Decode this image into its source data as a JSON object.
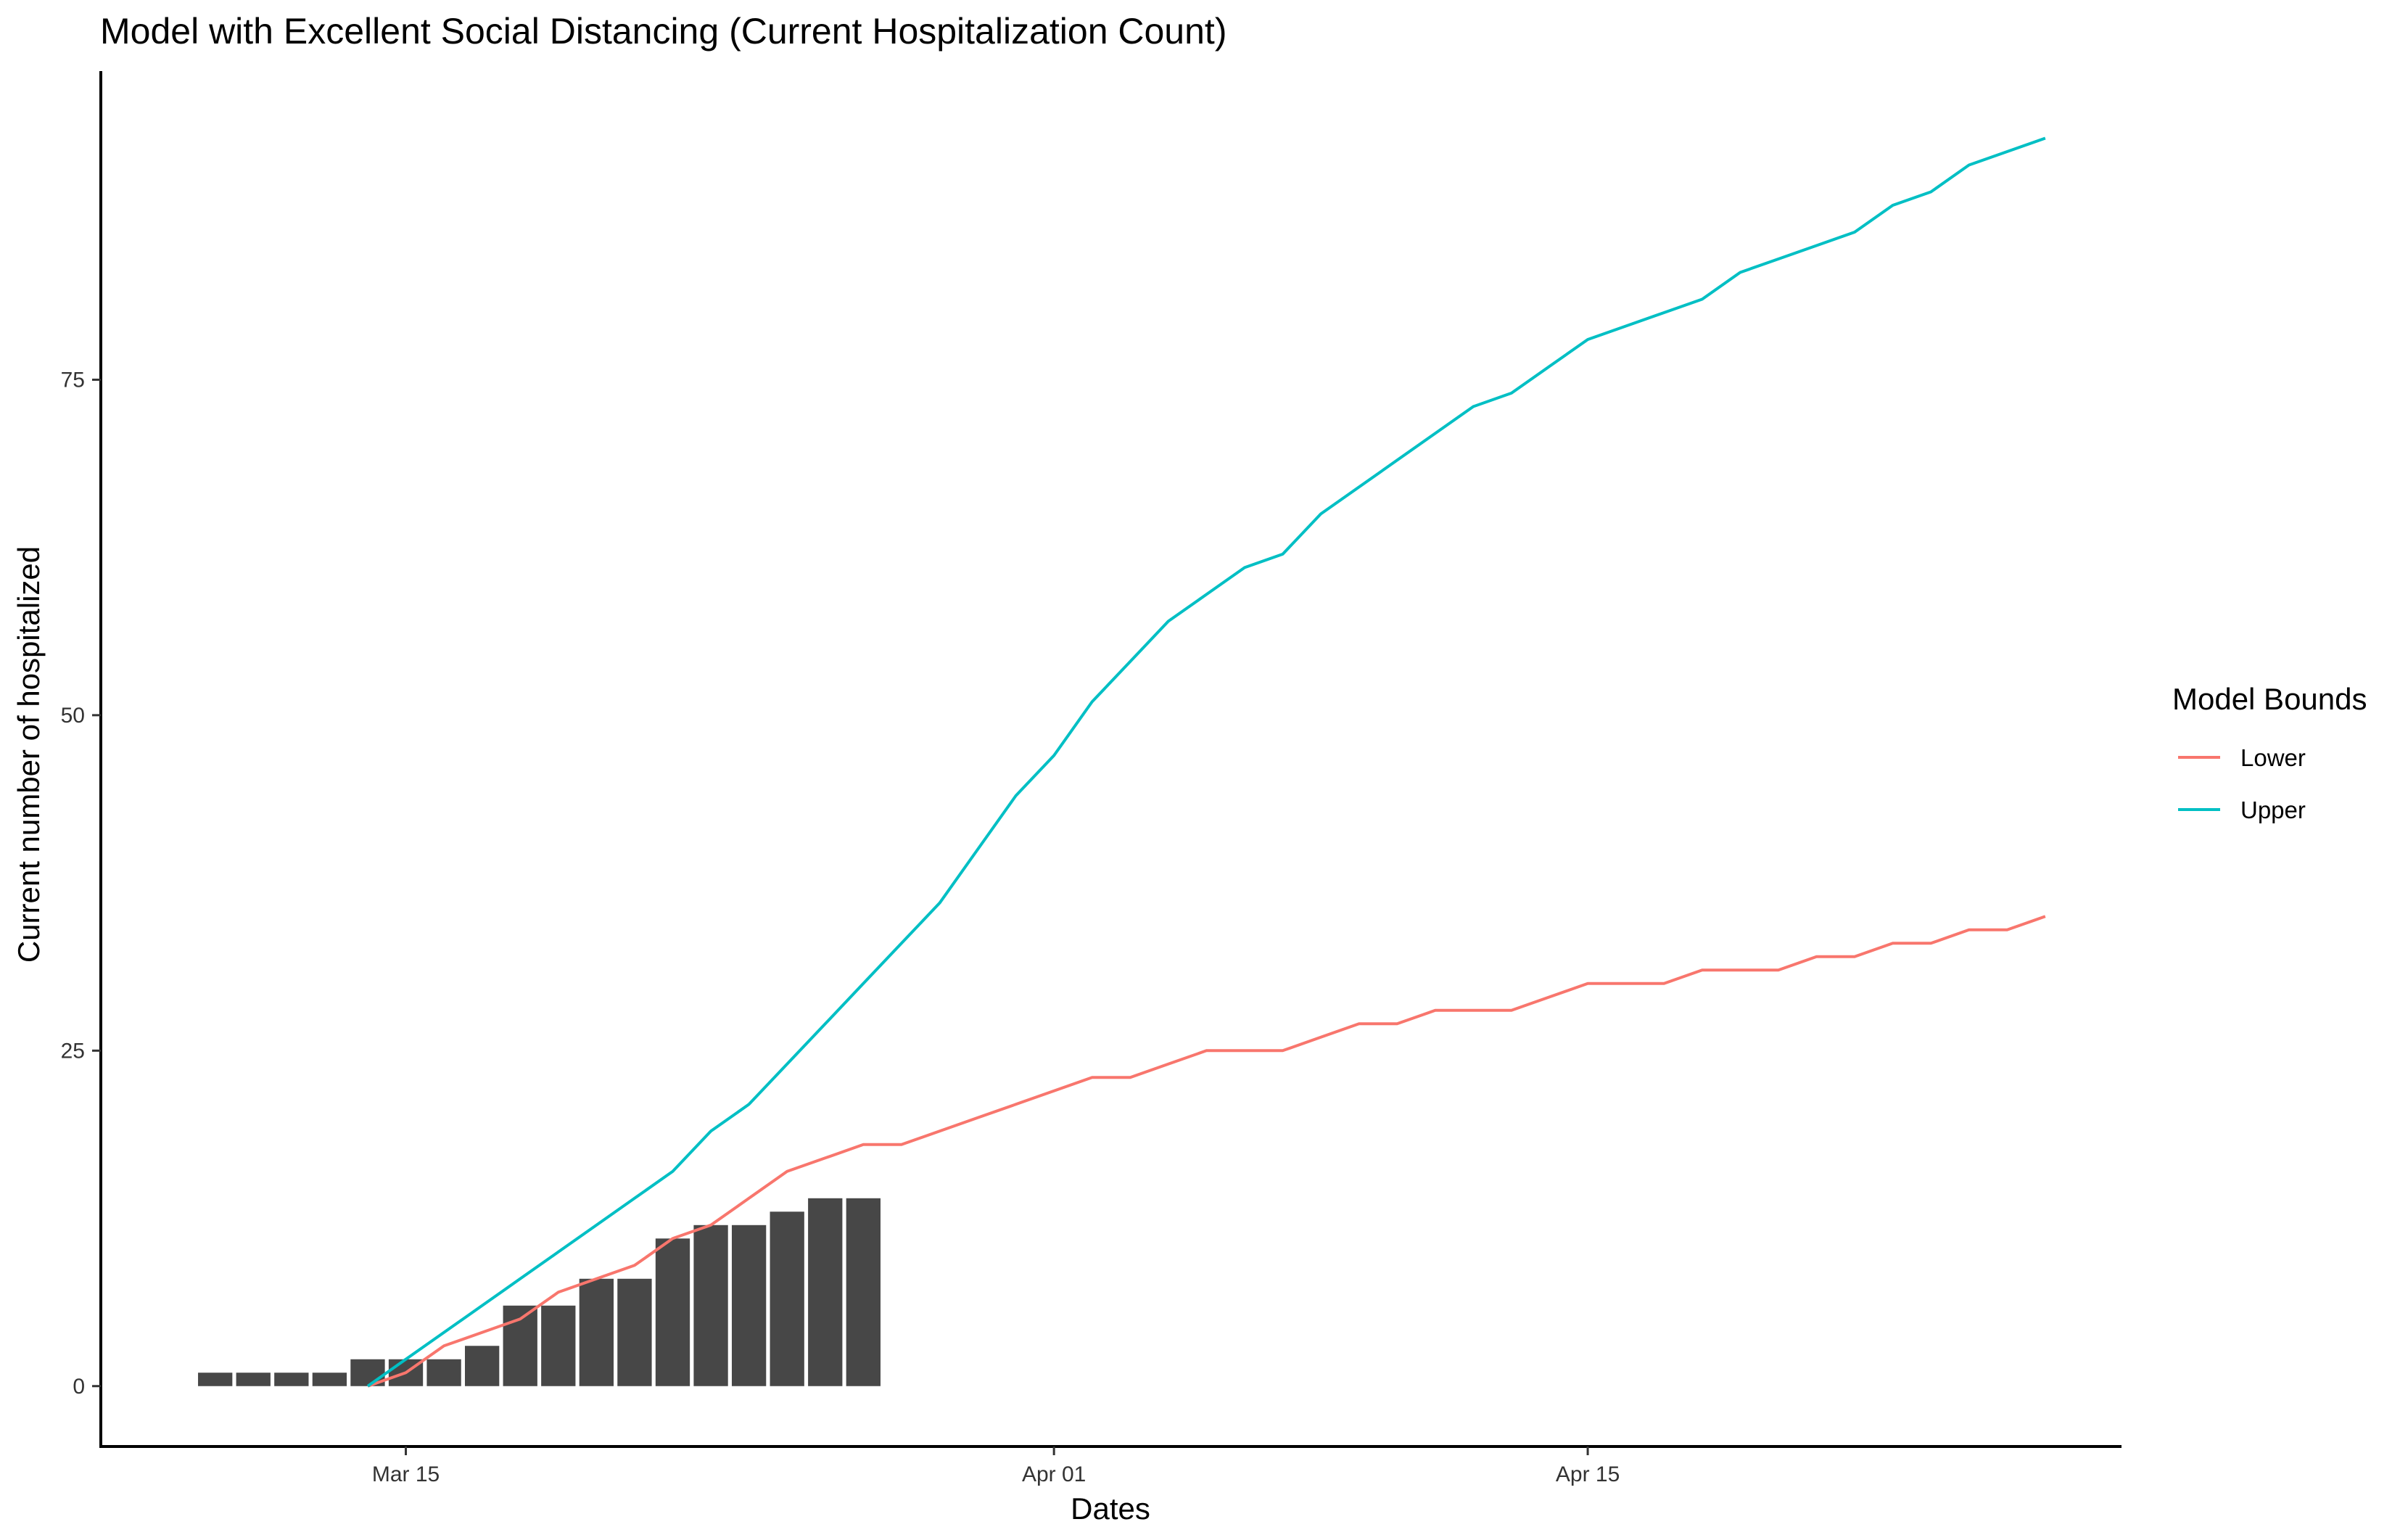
{
  "chart_data": {
    "type": "line",
    "title": "Model with Excellent Social Distancing (Current Hospitalization Count)",
    "xlabel": "Dates",
    "ylabel": "Current number of hospitalized",
    "xlim": [
      "2020-03-07",
      "2020-04-29"
    ],
    "ylim": [
      -4.5,
      98
    ],
    "x_ticks": [
      {
        "date": "2020-03-15",
        "label": "Mar 15"
      },
      {
        "date": "2020-04-01",
        "label": "Apr 01"
      },
      {
        "date": "2020-04-15",
        "label": "Apr 15"
      }
    ],
    "y_ticks": [
      0,
      25,
      50,
      75
    ],
    "grid": false,
    "legend": {
      "title": "Model Bounds",
      "position": "right",
      "entries": [
        {
          "label": "Lower",
          "color": "#F8766D"
        },
        {
          "label": "Upper",
          "color": "#00BFC4"
        }
      ]
    },
    "bars": {
      "color": "#474747",
      "dates": [
        "2020-03-10",
        "2020-03-11",
        "2020-03-12",
        "2020-03-13",
        "2020-03-14",
        "2020-03-15",
        "2020-03-16",
        "2020-03-17",
        "2020-03-18",
        "2020-03-19",
        "2020-03-20",
        "2020-03-21",
        "2020-03-22",
        "2020-03-23",
        "2020-03-24",
        "2020-03-25",
        "2020-03-26",
        "2020-03-27"
      ],
      "values": [
        1,
        1,
        1,
        1,
        2,
        2,
        2,
        3,
        6,
        6,
        8,
        8,
        11,
        12,
        12,
        13,
        14,
        14
      ]
    },
    "series": [
      {
        "name": "Lower",
        "color": "#F8766D",
        "points": [
          [
            "2020-03-14",
            0
          ],
          [
            "2020-03-15",
            1
          ],
          [
            "2020-03-16",
            3
          ],
          [
            "2020-03-17",
            4
          ],
          [
            "2020-03-18",
            5
          ],
          [
            "2020-03-19",
            7
          ],
          [
            "2020-03-20",
            8
          ],
          [
            "2020-03-21",
            9
          ],
          [
            "2020-03-22",
            11
          ],
          [
            "2020-03-23",
            12
          ],
          [
            "2020-03-24",
            14
          ],
          [
            "2020-03-25",
            16
          ],
          [
            "2020-03-26",
            17
          ],
          [
            "2020-03-27",
            18
          ],
          [
            "2020-03-28",
            18
          ],
          [
            "2020-03-29",
            19
          ],
          [
            "2020-03-30",
            20
          ],
          [
            "2020-03-31",
            21
          ],
          [
            "2020-04-01",
            22
          ],
          [
            "2020-04-02",
            23
          ],
          [
            "2020-04-03",
            23
          ],
          [
            "2020-04-04",
            24
          ],
          [
            "2020-04-05",
            25
          ],
          [
            "2020-04-06",
            25
          ],
          [
            "2020-04-07",
            25
          ],
          [
            "2020-04-08",
            26
          ],
          [
            "2020-04-09",
            27
          ],
          [
            "2020-04-10",
            27
          ],
          [
            "2020-04-11",
            28
          ],
          [
            "2020-04-12",
            28
          ],
          [
            "2020-04-13",
            28
          ],
          [
            "2020-04-14",
            29
          ],
          [
            "2020-04-15",
            30
          ],
          [
            "2020-04-16",
            30
          ],
          [
            "2020-04-17",
            30
          ],
          [
            "2020-04-18",
            31
          ],
          [
            "2020-04-19",
            31
          ],
          [
            "2020-04-20",
            31
          ],
          [
            "2020-04-21",
            32
          ],
          [
            "2020-04-22",
            32
          ],
          [
            "2020-04-23",
            33
          ],
          [
            "2020-04-24",
            33
          ],
          [
            "2020-04-25",
            34
          ],
          [
            "2020-04-26",
            34
          ],
          [
            "2020-04-27",
            35
          ]
        ]
      },
      {
        "name": "Upper",
        "color": "#00BFC4",
        "points": [
          [
            "2020-03-14",
            0
          ],
          [
            "2020-03-15",
            2
          ],
          [
            "2020-03-16",
            4
          ],
          [
            "2020-03-17",
            6
          ],
          [
            "2020-03-18",
            8
          ],
          [
            "2020-03-19",
            10
          ],
          [
            "2020-03-20",
            12
          ],
          [
            "2020-03-21",
            14
          ],
          [
            "2020-03-22",
            16
          ],
          [
            "2020-03-23",
            19
          ],
          [
            "2020-03-24",
            21
          ],
          [
            "2020-03-25",
            24
          ],
          [
            "2020-03-26",
            27
          ],
          [
            "2020-03-27",
            30
          ],
          [
            "2020-03-28",
            33
          ],
          [
            "2020-03-29",
            36
          ],
          [
            "2020-03-30",
            40
          ],
          [
            "2020-03-31",
            44
          ],
          [
            "2020-04-01",
            47
          ],
          [
            "2020-04-02",
            51
          ],
          [
            "2020-04-03",
            54
          ],
          [
            "2020-04-04",
            57
          ],
          [
            "2020-04-05",
            59
          ],
          [
            "2020-04-06",
            61
          ],
          [
            "2020-04-07",
            62
          ],
          [
            "2020-04-08",
            65
          ],
          [
            "2020-04-09",
            67
          ],
          [
            "2020-04-10",
            69
          ],
          [
            "2020-04-11",
            71
          ],
          [
            "2020-04-12",
            73
          ],
          [
            "2020-04-13",
            74
          ],
          [
            "2020-04-14",
            76
          ],
          [
            "2020-04-15",
            78
          ],
          [
            "2020-04-16",
            79
          ],
          [
            "2020-04-17",
            80
          ],
          [
            "2020-04-18",
            81
          ],
          [
            "2020-04-19",
            83
          ],
          [
            "2020-04-20",
            84
          ],
          [
            "2020-04-21",
            85
          ],
          [
            "2020-04-22",
            86
          ],
          [
            "2020-04-23",
            88
          ],
          [
            "2020-04-24",
            89
          ],
          [
            "2020-04-25",
            91
          ],
          [
            "2020-04-26",
            92
          ],
          [
            "2020-04-27",
            93
          ]
        ]
      }
    ]
  }
}
